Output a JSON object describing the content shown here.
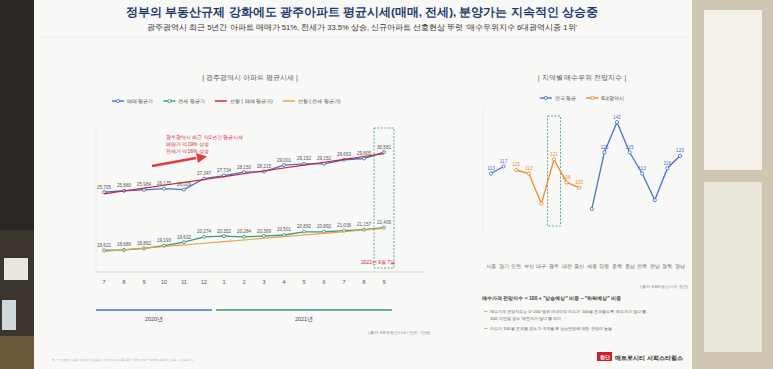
{
  "page": {
    "title": "정부의 부동산규제 강화에도 광주아파트 평균시세(매매, 전세), 분양가는 지속적인 상승중",
    "subtitle": "광주광역시 최근 5년간 아파트 매매가 51%, 전세가 33.5% 상승, 신규아파트 선호현상 뚜렷 '매수우위지수 6대광역시중 1위'",
    "footnote": "※ 본 자료에 사용된 이미지 및 내용은 소비자의 이해를 돕기 위한 것으로 실제와 차이가 있을 수 있습니다.",
    "brand": {
      "badge": "첨단",
      "name": "메트로시티 서희스타힐스"
    }
  },
  "chart_data": [
    {
      "type": "line",
      "title": "| 광주광역시 아파트 평균시세 |",
      "categories": [
        "7",
        "8",
        "9",
        "10",
        "11",
        "12",
        "1",
        "2",
        "3",
        "4",
        "5",
        "6",
        "7",
        "8",
        "9"
      ],
      "x_groups": [
        {
          "label": "2020년",
          "start": 0,
          "end": 5
        },
        {
          "label": "2021년",
          "start": 6,
          "end": 14
        }
      ],
      "series": [
        {
          "name": "매매 평균가",
          "color": "#4a72c4",
          "marker": "circle",
          "line_style": "solid",
          "data_labels": true,
          "values": [
            25705,
            25880,
            25984,
            26135,
            26029,
            27347,
            27734,
            28150,
            28215,
            29001,
            29152,
            29152,
            29653,
            29805,
            30581
          ],
          "value_labels": [
            "25,705",
            "25,880",
            "25,984",
            "26,135",
            "26,029",
            "27,347",
            "27,734",
            "28,150",
            "28,215",
            "29,001",
            "29,152",
            "29,152",
            "29,653",
            "29,805",
            "30,581"
          ]
        },
        {
          "name": "전세 평균가",
          "color": "#3a9a7a",
          "marker": "circle",
          "line_style": "solid",
          "data_labels": true,
          "values": [
            18621,
            18686,
            18862,
            19193,
            19632,
            20274,
            20352,
            20284,
            20369,
            20501,
            20892,
            20892,
            21036,
            21157,
            21406
          ],
          "value_labels": [
            "18,621",
            "18,686",
            "18,862",
            "19,193",
            "19,632",
            "20,274",
            "20,352",
            "20,284",
            "20,369",
            "20,501",
            "20,892",
            "20,892",
            "21,036",
            "21,157",
            "21,406"
          ]
        },
        {
          "name": "선형 ( 매매 평균가)",
          "color": "#c8202c",
          "marker": "none",
          "line_style": "solid",
          "data_labels": false,
          "values": [
            25500,
            25850,
            26200,
            26550,
            26900,
            27250,
            27600,
            27950,
            28300,
            28650,
            29000,
            29350,
            29700,
            30050,
            30400
          ]
        },
        {
          "name": "선형 ( 전세 평균가)",
          "color": "#e8a040",
          "marker": "none",
          "line_style": "solid",
          "data_labels": false,
          "values": [
            18500,
            18700,
            18900,
            19100,
            19300,
            19500,
            19700,
            19900,
            20100,
            20300,
            20500,
            20700,
            20900,
            21100,
            21300
          ]
        }
      ],
      "ylim": [
        16000,
        34000
      ],
      "yticks": [],
      "tick_labels": "x",
      "grid": false,
      "legend": "top",
      "highlight": 14,
      "annotations": [
        "광주광역시 최근 약1년간 평균시세",
        "매매가 약19% 상승",
        "전세가 약16% 상승",
        "2021년 9월 7일"
      ],
      "source": "(출처: KB부동산시세 / 단위 : 만원)"
    },
    {
      "type": "line",
      "title": "| 지역별 매수우위 전망지수 |",
      "categories": [
        "서울",
        "경기",
        "인천",
        "부산",
        "대구",
        "광주",
        "대전",
        "울산",
        "세종",
        "강원",
        "충북",
        "충남",
        "전북",
        "전남",
        "경북",
        "경남"
      ],
      "series": [
        {
          "name": "전국 평균",
          "color": "#4a72d0",
          "marker": "circle",
          "line_style": "solid",
          "data_labels": true,
          "values": [
            113,
            117,
            null,
            null,
            null,
            null,
            null,
            null,
            93,
            125,
            142,
            125,
            113,
            98,
            116,
            123
          ],
          "value_labels": [
            "113",
            "117",
            null,
            null,
            null,
            null,
            null,
            null,
            null,
            "125",
            "142",
            "125",
            "113",
            null,
            "116",
            "123"
          ]
        },
        {
          "name": "6대광역시",
          "color": "#f0892e",
          "marker": "circle",
          "line_style": "solid",
          "data_labels": true,
          "values": [
            null,
            null,
            115,
            113,
            96,
            121,
            108,
            105,
            null,
            null,
            null,
            null,
            null,
            null,
            null,
            null
          ],
          "value_labels": [
            null,
            null,
            "115",
            "113",
            null,
            "121",
            "108",
            "105",
            null,
            null,
            null,
            null,
            null,
            null,
            null,
            null
          ]
        }
      ],
      "ylim": [
        80,
        150
      ],
      "yticks": [],
      "tick_labels": "x",
      "grid": false,
      "legend": "top",
      "highlight": 5,
      "source": "(출처: KB부동산시세 참조)",
      "notes": [
        "매수가격 전망지수 = 100 + \"상승예상\" 비중 – \"하락예상\" 비중",
        "매수가격 전망지수는 0~200 범위 이내이며 지수가 100을 초과할수록 '매수자가 많다'를,",
        "100 미만일 경우 '매도자가 많다'를 의미",
        "지수가 100을 초과할 경우 2~3개월 후 상승반영에 대한 전망이 높음"
      ]
    }
  ]
}
